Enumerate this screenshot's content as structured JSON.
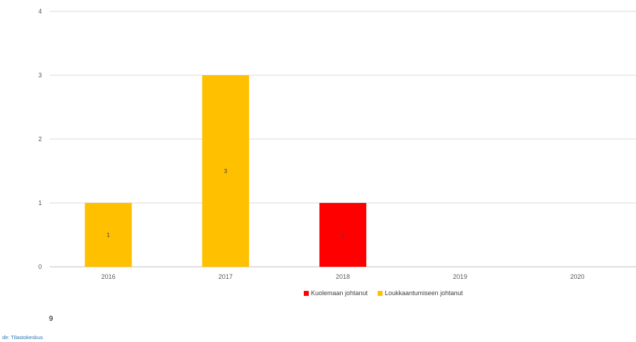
{
  "chart_data": {
    "type": "bar",
    "stacked": true,
    "categories": [
      "2016",
      "2017",
      "2018",
      "2019",
      "2020"
    ],
    "series": [
      {
        "name": "Kuolemaan johtanut",
        "color": "#FF0000",
        "values": [
          0,
          0,
          1,
          0,
          0
        ]
      },
      {
        "name": "Loukkaantumiseen johtanut",
        "color": "#FFC000",
        "values": [
          1,
          3,
          0,
          0,
          0
        ]
      }
    ],
    "y_ticks": [
      "0",
      "1",
      "2",
      "3",
      "4"
    ],
    "ylim": [
      0,
      4
    ],
    "grid": true,
    "legend_position": "bottom"
  },
  "page_number": "9",
  "source_text": "ɗe: Tilastokeskus"
}
